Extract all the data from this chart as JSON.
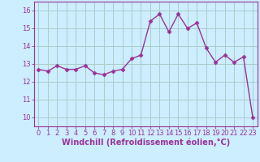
{
  "x": [
    0,
    1,
    2,
    3,
    4,
    5,
    6,
    7,
    8,
    9,
    10,
    11,
    12,
    13,
    14,
    15,
    16,
    17,
    18,
    19,
    20,
    21,
    22,
    23
  ],
  "y": [
    12.7,
    12.6,
    12.9,
    12.7,
    12.7,
    12.9,
    12.5,
    12.4,
    12.6,
    12.7,
    13.3,
    13.5,
    15.4,
    15.8,
    14.8,
    15.8,
    15.0,
    15.3,
    13.9,
    13.1,
    13.5,
    13.1,
    13.4,
    10.0
  ],
  "line_color": "#993399",
  "marker": "D",
  "marker_size": 2.5,
  "line_width": 1.0,
  "xlabel": "Windchill (Refroidissement éolien,°C)",
  "xlabel_fontsize": 7,
  "xlabel_color": "#993399",
  "ylim": [
    9.5,
    16.5
  ],
  "xlim": [
    -0.5,
    23.5
  ],
  "yticks": [
    10,
    11,
    12,
    13,
    14,
    15,
    16
  ],
  "xticks": [
    0,
    1,
    2,
    3,
    4,
    5,
    6,
    7,
    8,
    9,
    10,
    11,
    12,
    13,
    14,
    15,
    16,
    17,
    18,
    19,
    20,
    21,
    22,
    23
  ],
  "xtick_labels": [
    "0",
    "1",
    "2",
    "3",
    "4",
    "5",
    "6",
    "7",
    "8",
    "9",
    "10",
    "11",
    "12",
    "13",
    "14",
    "15",
    "16",
    "17",
    "18",
    "19",
    "20",
    "21",
    "22",
    "23"
  ],
  "bg_color": "#cceeff",
  "grid_color": "#aacccc",
  "tick_fontsize": 6,
  "tick_color": "#993399",
  "spine_color": "#993399"
}
